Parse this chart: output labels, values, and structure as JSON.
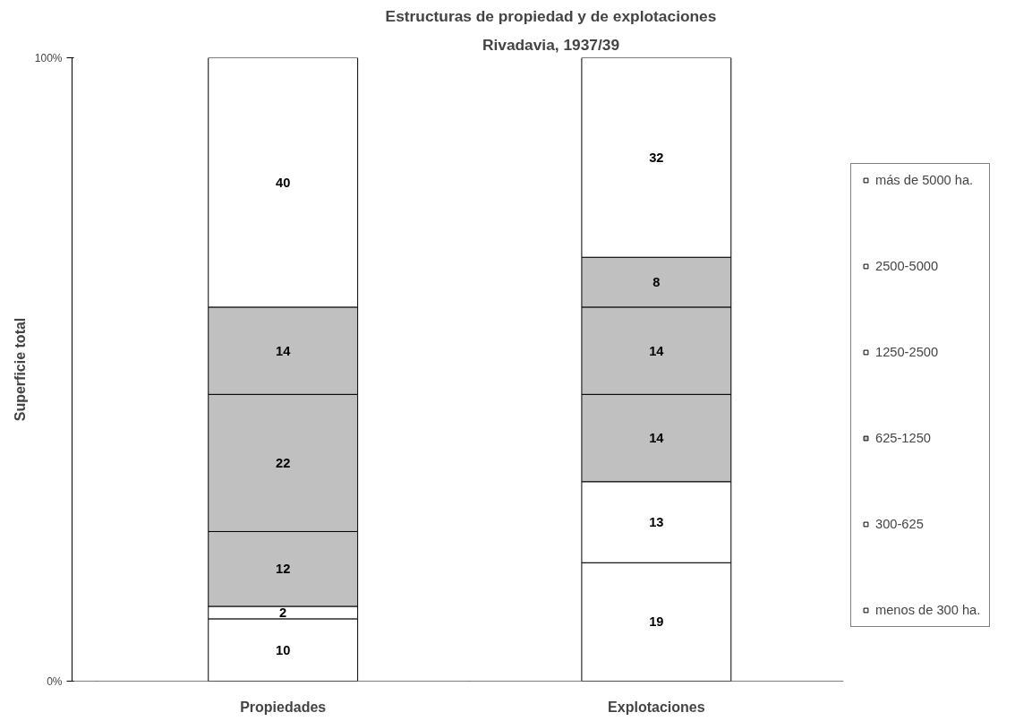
{
  "chart_data": {
    "type": "bar",
    "title": "Estructuras de propiedad y de explotaciones",
    "subtitle": "Rivadavia, 1937/39",
    "ylabel": "Superficie total",
    "categories": [
      "Propiedades",
      "Explotaciones"
    ],
    "stacked": true,
    "data_labels": true,
    "legend": "right",
    "ylim": [
      0,
      100
    ],
    "yticks": [
      {
        "value": 0,
        "label": "0%"
      },
      {
        "value": 100,
        "label": "100%"
      }
    ],
    "series": [
      {
        "name": "menos de 300 ha.",
        "color": "#ffffff",
        "colors": [
          "#ffffff",
          "#ffffff"
        ],
        "values": [
          10,
          19
        ]
      },
      {
        "name": "300-625",
        "color": "#ffffff",
        "colors": [
          "#ffffff",
          "#ffffff"
        ],
        "values": [
          2,
          13
        ]
      },
      {
        "name": "625-1250",
        "color": "#c0c0c0",
        "colors": [
          "#c0c0c0",
          "#c0c0c0"
        ],
        "values": [
          12,
          14
        ]
      },
      {
        "name": "1250-2500",
        "color": "#ffffff",
        "colors": [
          "#c0c0c0",
          "#c0c0c0"
        ],
        "values": [
          22,
          14
        ]
      },
      {
        "name": "2500-5000",
        "color": "#ffffff",
        "colors": [
          "#c0c0c0",
          "#c0c0c0"
        ],
        "values": [
          14,
          8
        ]
      },
      {
        "name": "más de 5000 ha.",
        "color": "#ffffff",
        "colors": [
          "#ffffff",
          "#ffffff"
        ],
        "values": [
          40,
          32
        ]
      }
    ]
  }
}
